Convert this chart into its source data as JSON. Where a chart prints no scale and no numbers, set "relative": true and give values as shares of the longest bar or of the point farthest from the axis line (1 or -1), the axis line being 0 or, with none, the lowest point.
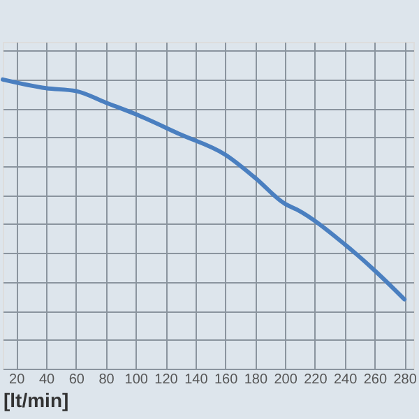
{
  "chart_data": {
    "type": "line",
    "relative": true,
    "xlabel": "[lt/min]",
    "x": [
      11,
      40,
      60,
      80,
      100,
      130,
      160,
      180,
      200,
      208,
      240,
      260,
      280
    ],
    "series": [
      {
        "color": "#4a7fc0",
        "values": [
          1,
          0.97,
          0.96,
          0.92,
          0.88,
          0.81,
          0.74,
          0.66,
          0.57,
          0.55,
          0.43,
          0.34,
          0.24
        ]
      }
    ],
    "xlim": [
      11,
      286
    ],
    "xticks": [
      20,
      40,
      60,
      80,
      100,
      120,
      140,
      160,
      180,
      200,
      220,
      240,
      260,
      280
    ],
    "grid": true,
    "marker": "none",
    "line_style": "solid"
  }
}
